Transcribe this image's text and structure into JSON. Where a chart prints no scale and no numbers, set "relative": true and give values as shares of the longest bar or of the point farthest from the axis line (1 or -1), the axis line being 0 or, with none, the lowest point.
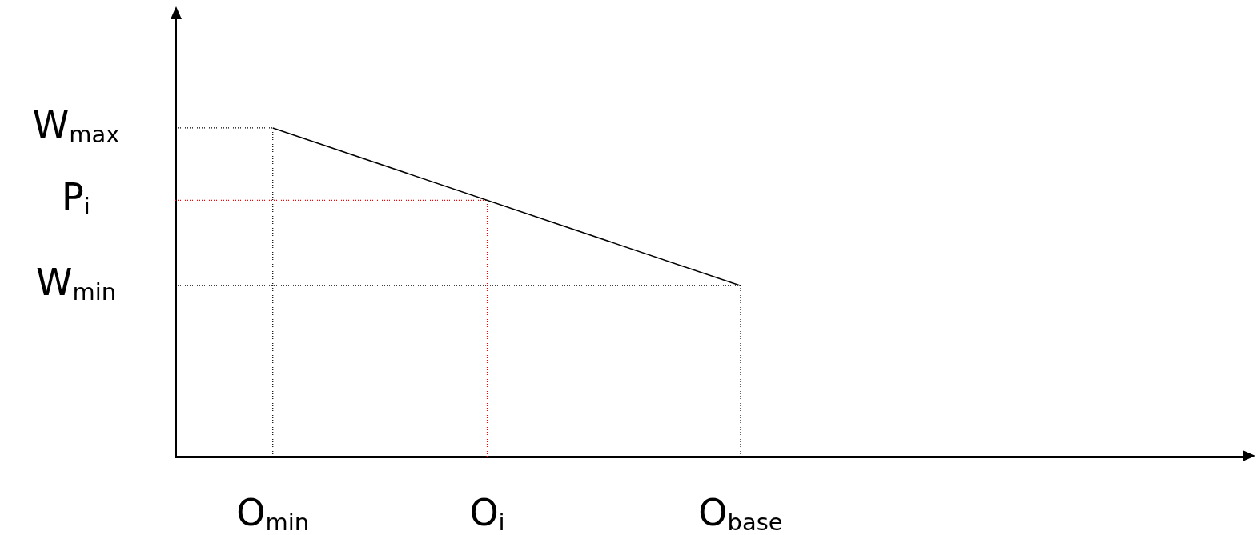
{
  "chart_data": {
    "type": "line",
    "marker": "none",
    "relative": true,
    "categories": [
      null,
      null,
      null,
      null,
      null,
      "O$_{min}$",
      null,
      null,
      null,
      null,
      null,
      null,
      null,
      null,
      null,
      null,
      "O$_{i}$",
      null,
      null,
      null,
      null,
      null,
      null,
      null,
      null,
      null,
      null,
      null,
      null,
      "O$_{base}$",
      null,
      null,
      null,
      null,
      null,
      null,
      null,
      null,
      null,
      null,
      null,
      null,
      null,
      null,
      null,
      null,
      null,
      null,
      null,
      null,
      null,
      null,
      null,
      null,
      null,
      null
    ],
    "ref_lines": [
      {
        "axis": "x",
        "value": "O$_{min}$",
        "color": "#000000",
        "line_style": "dotted"
      },
      {
        "axis": "x",
        "value": "O$_{i}$",
        "color": "#ff0000",
        "line_style": "dotted"
      },
      {
        "axis": "x",
        "value": "O$_{base}$",
        "color": "#000000",
        "line_style": "dotted"
      },
      {
        "axis": "y",
        "value": 1,
        "label": "W$_{max}$",
        "color": "#000000",
        "line_style": "dotted"
      },
      {
        "axis": "y",
        "value": 0.78,
        "label": "P$_{i}$",
        "color": "#ff0000",
        "line_style": "dotted"
      },
      {
        "axis": "y",
        "value": 0.52,
        "label": "W$_{min}$",
        "color": "#000000",
        "line_style": "dotted"
      }
    ],
    "series": [
      {
        "color": "#000000",
        "line_style": "solid",
        "values": [
          null,
          null,
          null,
          null,
          null,
          1,
          null,
          null,
          null,
          null,
          null,
          null,
          null,
          null,
          null,
          null,
          null,
          null,
          null,
          null,
          null,
          null,
          null,
          null,
          null,
          null,
          null,
          null,
          null,
          0.52,
          null,
          null,
          null,
          null,
          null,
          null,
          null,
          null,
          null,
          null,
          null,
          null,
          null,
          null,
          null,
          null,
          null,
          null,
          null,
          null,
          null,
          null,
          null,
          null,
          null,
          null
        ]
      }
    ]
  }
}
